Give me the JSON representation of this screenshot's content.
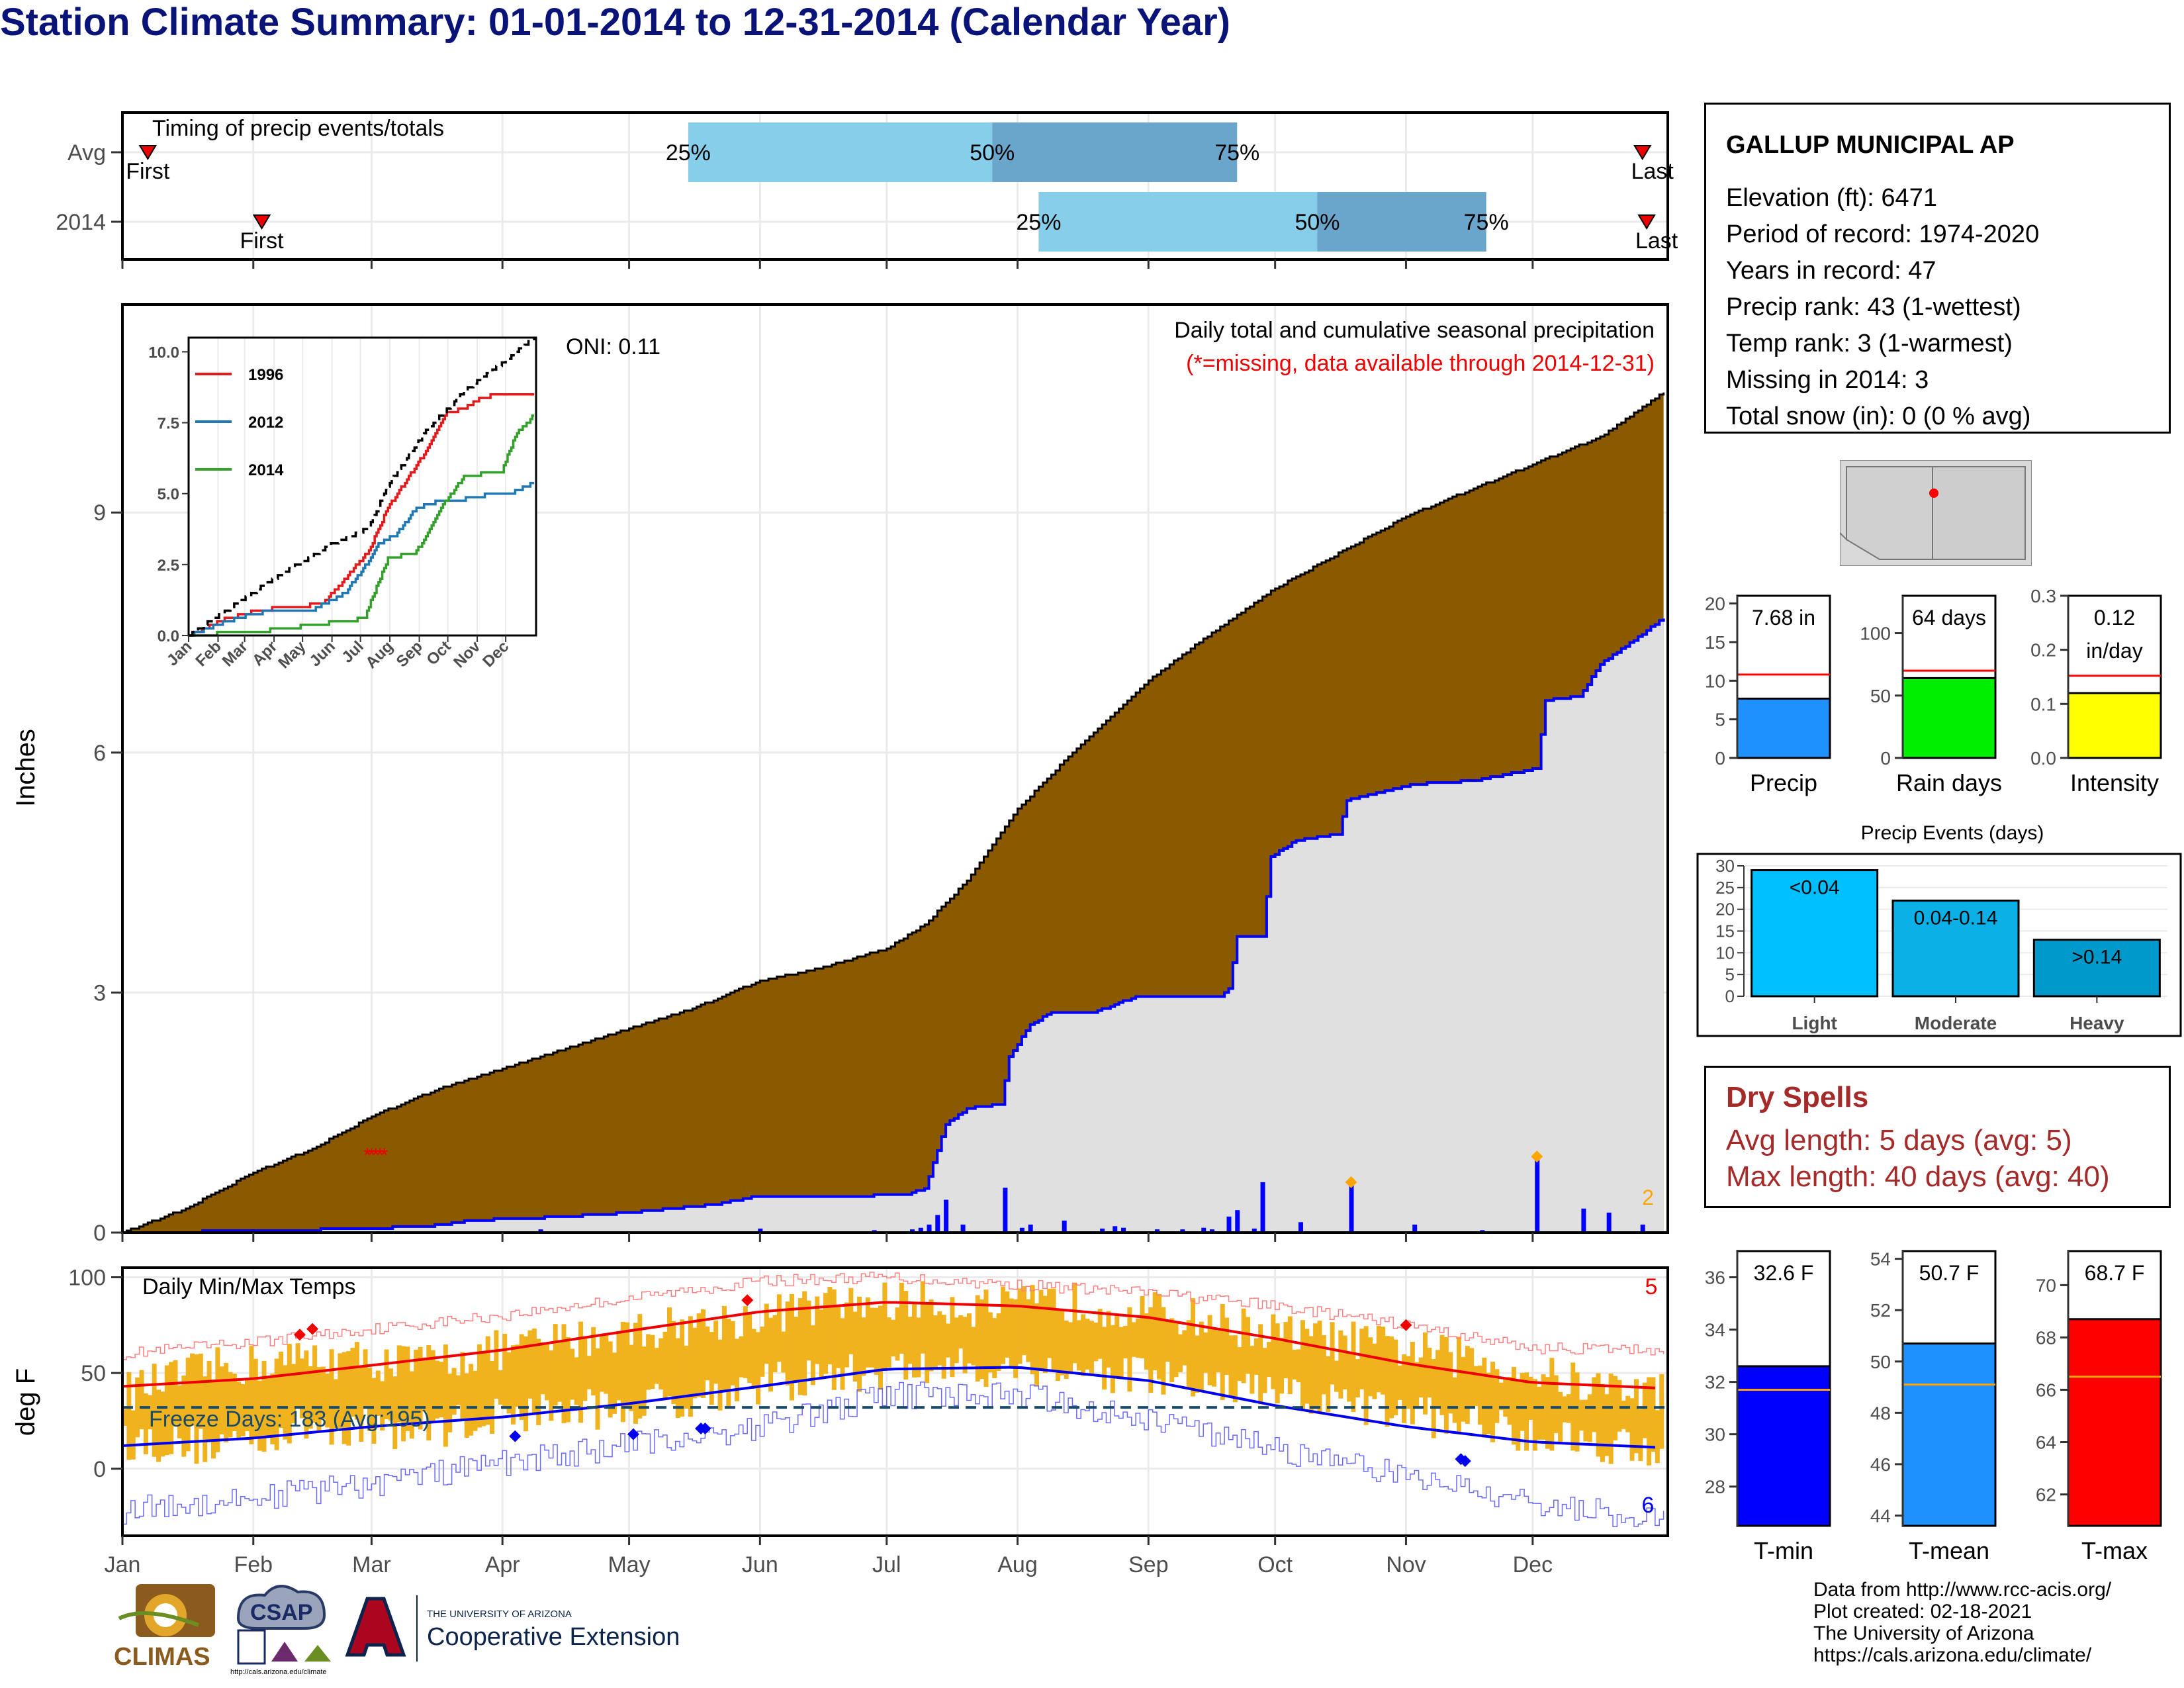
{
  "title": "Station Climate Summary: 01-01-2014 to 12-31-2014 (Calendar Year)",
  "station": {
    "name": "GALLUP MUNICIPAL AP",
    "lines": [
      "Elevation (ft): 6471",
      "Period of record: 1974-2020",
      "Years in record: 47",
      "Precip rank: 43 (1-wettest)",
      "Temp rank: 3 (1-warmest)",
      "Missing in 2014: 3",
      "Total snow (in): 0 (0 % avg)"
    ]
  },
  "dry_spells": {
    "title": "Dry Spells",
    "avg": "Avg length: 5 days (avg: 5)",
    "max": "Max length: 40 days (avg: 40)"
  },
  "credits": [
    "Data from http://www.rcc-acis.org/",
    "Plot created: 02-18-2021",
    "The University of Arizona",
    "https://cals.arizona.edu/climate/"
  ],
  "logos": {
    "climas": "CLIMAS",
    "csap": "CSAP",
    "csap_url": "http://cals.arizona.edu/climate",
    "ua_small": "THE UNIVERSITY OF ARIZONA",
    "ua_big": "Cooperative Extension"
  },
  "colors": {
    "precip_fill": "#8b5a00",
    "precip_line": "#0000ff",
    "temp_bar": "#f0b31e",
    "normal_fill": "#e0e0e0",
    "light_blue": "#87ceeb",
    "mid_blue": "#6aa5cc"
  },
  "chart_data": [
    {
      "id": "timing",
      "type": "bar",
      "title": "Timing of precip events/totals",
      "categories": [
        "Avg",
        "2014"
      ],
      "months": [
        "Jan",
        "Feb",
        "Mar",
        "Apr",
        "May",
        "Jun",
        "Jul",
        "Aug",
        "Sep",
        "Oct",
        "Nov",
        "Dec"
      ],
      "rows": [
        {
          "name": "Avg",
          "first_doy": 6,
          "last_doy": 360,
          "q25_doy": 134,
          "q50_doy": 206,
          "q75_doy": 264,
          "first_label": "First",
          "last_label": "Last"
        },
        {
          "name": "2014",
          "first_doy": 33,
          "last_doy": 361,
          "q25_doy": 217,
          "q50_doy": 283,
          "q75_doy": 323,
          "first_label": "First",
          "last_label": "Last"
        }
      ],
      "pct_labels": [
        "25%",
        "50%",
        "75%"
      ]
    },
    {
      "id": "precip",
      "type": "area",
      "title": "Daily total and cumulative seasonal precipitation",
      "subtitle": "(*=missing, data available through 2014-12-31)",
      "ylabel": "Inches",
      "ylim": [
        0,
        11.6
      ],
      "yticks": [
        0,
        3,
        6,
        9
      ],
      "oni": "ONI: 0.11",
      "normal_cumulative": [
        [
          0,
          0
        ],
        [
          15,
          0.3
        ],
        [
          31,
          0.75
        ],
        [
          45,
          1.05
        ],
        [
          59,
          1.45
        ],
        [
          75,
          1.8
        ],
        [
          90,
          2.05
        ],
        [
          105,
          2.3
        ],
        [
          120,
          2.55
        ],
        [
          135,
          2.8
        ],
        [
          151,
          3.15
        ],
        [
          165,
          3.3
        ],
        [
          181,
          3.55
        ],
        [
          190,
          3.85
        ],
        [
          200,
          4.4
        ],
        [
          212,
          5.3
        ],
        [
          225,
          6.0
        ],
        [
          243,
          6.9
        ],
        [
          258,
          7.5
        ],
        [
          273,
          8.05
        ],
        [
          290,
          8.55
        ],
        [
          304,
          8.95
        ],
        [
          320,
          9.3
        ],
        [
          334,
          9.6
        ],
        [
          350,
          9.95
        ],
        [
          365,
          10.5
        ]
      ],
      "cumulative_2014": [
        [
          0,
          0
        ],
        [
          30,
          0.02
        ],
        [
          59,
          0.05
        ],
        [
          75,
          0.09
        ],
        [
          82,
          0.15
        ],
        [
          105,
          0.2
        ],
        [
          120,
          0.25
        ],
        [
          140,
          0.35
        ],
        [
          150,
          0.45
        ],
        [
          165,
          0.45
        ],
        [
          185,
          0.47
        ],
        [
          190,
          0.55
        ],
        [
          195,
          1.35
        ],
        [
          200,
          1.55
        ],
        [
          208,
          1.6
        ],
        [
          210,
          2.2
        ],
        [
          215,
          2.6
        ],
        [
          220,
          2.75
        ],
        [
          230,
          2.75
        ],
        [
          240,
          2.95
        ],
        [
          260,
          2.95
        ],
        [
          262,
          3.05
        ],
        [
          264,
          3.7
        ],
        [
          270,
          3.7
        ],
        [
          272,
          4.7
        ],
        [
          278,
          4.9
        ],
        [
          288,
          4.98
        ],
        [
          290,
          5.4
        ],
        [
          305,
          5.6
        ],
        [
          320,
          5.65
        ],
        [
          335,
          5.8
        ],
        [
          337,
          6.65
        ],
        [
          345,
          6.7
        ],
        [
          350,
          7.1
        ],
        [
          365,
          7.68
        ]
      ],
      "daily_bars": [
        [
          99,
          0.04
        ],
        [
          151,
          0.05
        ],
        [
          178,
          0.03
        ],
        [
          187,
          0.04
        ],
        [
          189,
          0.06
        ],
        [
          191,
          0.1
        ],
        [
          193,
          0.22
        ],
        [
          195,
          0.41
        ],
        [
          199,
          0.1
        ],
        [
          209,
          0.56
        ],
        [
          213,
          0.06
        ],
        [
          215,
          0.1
        ],
        [
          223,
          0.15
        ],
        [
          232,
          0.05
        ],
        [
          235,
          0.08
        ],
        [
          237,
          0.06
        ],
        [
          245,
          0.04
        ],
        [
          251,
          0.04
        ],
        [
          256,
          0.06
        ],
        [
          258,
          0.04
        ],
        [
          262,
          0.2
        ],
        [
          264,
          0.28
        ],
        [
          268,
          0.05
        ],
        [
          270,
          0.63
        ],
        [
          279,
          0.13
        ],
        [
          291,
          0.63
        ],
        [
          306,
          0.1
        ],
        [
          322,
          0.03
        ],
        [
          335,
          0.95
        ],
        [
          346,
          0.3
        ],
        [
          352,
          0.25
        ],
        [
          360,
          0.1
        ]
      ],
      "markers_orange": [
        [
          291,
          0.63
        ],
        [
          335,
          0.95
        ]
      ],
      "orange_label": "2",
      "inset": {
        "type": "line",
        "ylim": [
          0,
          10.5
        ],
        "yticks": [
          "0.0",
          "2.5",
          "5.0",
          "7.5",
          "10.0"
        ],
        "xticks": [
          "Jan",
          "Feb",
          "Mar",
          "Apr",
          "May",
          "Jun",
          "Jul",
          "Aug",
          "Sep",
          "Oct",
          "Nov",
          "Dec"
        ],
        "series": [
          {
            "name": "1996",
            "color": "#e31a1c",
            "points": [
              [
                0,
                0
              ],
              [
                40,
                0.6
              ],
              [
                75,
                0.9
              ],
              [
                140,
                1.1
              ],
              [
                160,
                1.8
              ],
              [
                175,
                2.4
              ],
              [
                190,
                3.0
              ],
              [
                210,
                4.5
              ],
              [
                230,
                5.5
              ],
              [
                250,
                6.5
              ],
              [
                270,
                7.8
              ],
              [
                290,
                8.0
              ],
              [
                310,
                8.4
              ],
              [
                330,
                8.5
              ],
              [
                365,
                8.5
              ]
            ]
          },
          {
            "name": "2012",
            "color": "#1f78b4",
            "points": [
              [
                0,
                0
              ],
              [
                40,
                0.5
              ],
              [
                70,
                0.8
              ],
              [
                130,
                0.9
              ],
              [
                165,
                1.5
              ],
              [
                185,
                2.4
              ],
              [
                200,
                3.2
              ],
              [
                220,
                3.6
              ],
              [
                240,
                4.5
              ],
              [
                260,
                4.7
              ],
              [
                290,
                4.8
              ],
              [
                320,
                5.0
              ],
              [
                340,
                5.0
              ],
              [
                365,
                5.4
              ]
            ]
          },
          {
            "name": "2014",
            "color": "#33a02c",
            "points": [
              [
                0,
                0
              ],
              [
                90,
                0.2
              ],
              [
                150,
                0.45
              ],
              [
                185,
                0.6
              ],
              [
                210,
                2.7
              ],
              [
                240,
                2.95
              ],
              [
                270,
                4.7
              ],
              [
                290,
                5.6
              ],
              [
                330,
                5.8
              ],
              [
                345,
                7.1
              ],
              [
                365,
                7.8
              ]
            ]
          },
          {
            "name": "",
            "color": "#000000",
            "dashed": true,
            "points": [
              [
                0,
                0
              ],
              [
                90,
                2.0
              ],
              [
                150,
                3.2
              ],
              [
                190,
                3.8
              ],
              [
                210,
                5.3
              ],
              [
                250,
                7.2
              ],
              [
                290,
                8.6
              ],
              [
                330,
                9.6
              ],
              [
                365,
                10.5
              ]
            ]
          }
        ]
      }
    },
    {
      "id": "temps",
      "type": "bar",
      "title": "Daily Min/Max Temps",
      "ylabel": "deg F",
      "ylim": [
        -35,
        105
      ],
      "yticks": [
        0,
        50,
        100
      ],
      "freeze_label": "Freeze Days: 183 (Avg:195)",
      "freeze_line": 32,
      "red_count": "5",
      "blue_count": "6",
      "xticks": [
        "Jan",
        "Feb",
        "Mar",
        "Apr",
        "May",
        "Jun",
        "Jul",
        "Aug",
        "Sep",
        "Oct",
        "Nov",
        "Dec"
      ],
      "normal_max": [
        [
          0,
          43
        ],
        [
          31,
          47
        ],
        [
          59,
          54
        ],
        [
          90,
          62
        ],
        [
          120,
          72
        ],
        [
          151,
          82
        ],
        [
          181,
          87
        ],
        [
          212,
          85
        ],
        [
          243,
          79
        ],
        [
          273,
          68
        ],
        [
          304,
          55
        ],
        [
          334,
          45
        ],
        [
          365,
          42
        ]
      ],
      "normal_min": [
        [
          0,
          12
        ],
        [
          31,
          16
        ],
        [
          59,
          22
        ],
        [
          90,
          27
        ],
        [
          120,
          34
        ],
        [
          151,
          43
        ],
        [
          181,
          52
        ],
        [
          212,
          53
        ],
        [
          243,
          46
        ],
        [
          273,
          33
        ],
        [
          304,
          22
        ],
        [
          334,
          14
        ],
        [
          365,
          11
        ]
      ],
      "record_max": [
        [
          0,
          60
        ],
        [
          31,
          66
        ],
        [
          59,
          73
        ],
        [
          90,
          80
        ],
        [
          120,
          89
        ],
        [
          151,
          98
        ],
        [
          181,
          100
        ],
        [
          212,
          96
        ],
        [
          243,
          92
        ],
        [
          273,
          85
        ],
        [
          304,
          75
        ],
        [
          334,
          63
        ],
        [
          365,
          62
        ]
      ],
      "record_min": [
        [
          0,
          -22
        ],
        [
          31,
          -15
        ],
        [
          59,
          -8
        ],
        [
          90,
          3
        ],
        [
          120,
          12
        ],
        [
          151,
          22
        ],
        [
          181,
          38
        ],
        [
          212,
          39
        ],
        [
          243,
          26
        ],
        [
          273,
          10
        ],
        [
          304,
          -4
        ],
        [
          334,
          -17
        ],
        [
          365,
          -28
        ]
      ],
      "daily_max_smooth": [
        [
          0,
          40
        ],
        [
          20,
          52
        ],
        [
          45,
          58
        ],
        [
          70,
          55
        ],
        [
          95,
          64
        ],
        [
          120,
          72
        ],
        [
          145,
          78
        ],
        [
          165,
          85
        ],
        [
          185,
          88
        ],
        [
          205,
          84
        ],
        [
          225,
          87
        ],
        [
          250,
          80
        ],
        [
          275,
          70
        ],
        [
          300,
          64
        ],
        [
          325,
          55
        ],
        [
          345,
          44
        ],
        [
          365,
          40
        ]
      ],
      "daily_min_smooth": [
        [
          0,
          15
        ],
        [
          20,
          12
        ],
        [
          45,
          23
        ],
        [
          70,
          20
        ],
        [
          95,
          30
        ],
        [
          120,
          32
        ],
        [
          145,
          42
        ],
        [
          165,
          48
        ],
        [
          185,
          52
        ],
        [
          205,
          53
        ],
        [
          225,
          52
        ],
        [
          250,
          45
        ],
        [
          275,
          38
        ],
        [
          300,
          30
        ],
        [
          325,
          22
        ],
        [
          345,
          15
        ],
        [
          365,
          10
        ]
      ]
    },
    {
      "id": "mini_precip",
      "type": "bar",
      "bars": [
        {
          "name": "Precip",
          "value": 7.68,
          "label": "7.68 in",
          "normal": 10.8,
          "ylim": [
            0,
            21
          ],
          "yticks": [
            0,
            5,
            10,
            15,
            20
          ],
          "color": "#1e90ff"
        },
        {
          "name": "Rain days",
          "value": 64,
          "label": "64 days",
          "normal": 70,
          "ylim": [
            0,
            130
          ],
          "yticks": [
            0,
            50,
            100
          ],
          "color": "#00ee00"
        },
        {
          "name": "Intensity",
          "value": 0.12,
          "label": "0.12 in/day",
          "label_lines": [
            "0.12",
            "in/day"
          ],
          "normal": 0.152,
          "ylim": [
            0,
            0.3
          ],
          "yticks": [
            "0.0",
            "0.1",
            "0.2",
            "0.3"
          ],
          "color": "#ffff00"
        }
      ]
    },
    {
      "id": "events",
      "type": "bar",
      "title": "Precip Events (days)",
      "categories": [
        "Light",
        "Moderate",
        "Heavy"
      ],
      "values": [
        29,
        22,
        13
      ],
      "labels": [
        "<0.04",
        "0.04-0.14",
        ">0.14"
      ],
      "colors": [
        "#00bfff",
        "#0bb1e6",
        "#0099cc"
      ],
      "ylim": [
        0,
        30
      ],
      "yticks": [
        0,
        5,
        10,
        15,
        20,
        25,
        30
      ]
    },
    {
      "id": "mini_temp",
      "type": "bar",
      "bars": [
        {
          "name": "T-min",
          "value": 32.6,
          "label": "32.6 F",
          "normal": 31.7,
          "ylim": [
            26.5,
            37
          ],
          "yticks": [
            28,
            30,
            32,
            34,
            36
          ],
          "color": "#0000ff"
        },
        {
          "name": "T-mean",
          "value": 50.7,
          "label": "50.7 F",
          "normal": 49.1,
          "ylim": [
            43.6,
            54.3
          ],
          "yticks": [
            44,
            46,
            48,
            50,
            52,
            54
          ],
          "color": "#1e90ff"
        },
        {
          "name": "T-max",
          "value": 68.7,
          "label": "68.7 F",
          "normal": 66.5,
          "ylim": [
            60.8,
            71.3
          ],
          "yticks": [
            62,
            64,
            66,
            68,
            70
          ],
          "color": "#ff0000"
        }
      ]
    }
  ]
}
